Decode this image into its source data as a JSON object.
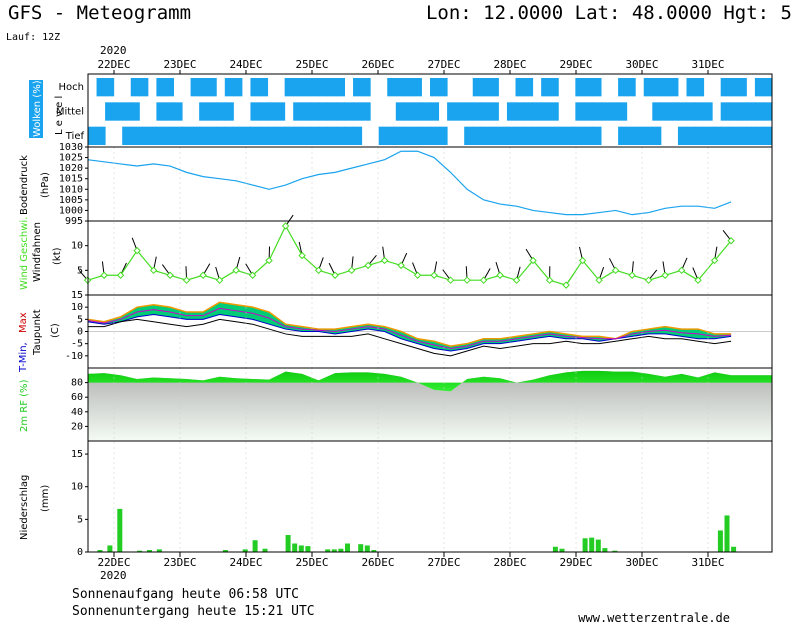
{
  "header": {
    "title": "GFS - Meteogramm",
    "coords": "Lon: 12.0000 Lat: 48.0000 Hgt: 5",
    "run": "Lauf: 12Z",
    "year": "2020"
  },
  "footer": {
    "sunrise": "Sonnenaufgang heute 06:58 UTC",
    "sunset": "Sonnenuntergang heute 15:21 UTC",
    "website": "www.wetterzentrale.de"
  },
  "colors": {
    "cloud": "#1aa3ee",
    "pressure": "#1aa3ee",
    "wind": "#44dd22",
    "barb": "#000000",
    "tmin": "#0000cc",
    "tmax": "#cc0000",
    "dew": "#000000",
    "rh": "#22cc22",
    "precip": "#22cc22"
  },
  "chart_data": [
    {
      "type": "heatmap",
      "name": "Wolken (%)",
      "panel_label": "Wolken (%)",
      "level_label": "L e v e l",
      "levels": [
        "Hoch",
        "Mittel",
        "Tief"
      ],
      "x": [
        "22DEC",
        "23DEC",
        "24DEC",
        "25DEC",
        "26DEC",
        "27DEC",
        "28DEC",
        "29DEC",
        "30DEC",
        "31DEC"
      ],
      "rows": {
        "Hoch": [
          0,
          1,
          1,
          0,
          0,
          1,
          1,
          0,
          1,
          1,
          0,
          0,
          1,
          1,
          1,
          0,
          1,
          1,
          0,
          1,
          1,
          0,
          0,
          1,
          1,
          1,
          1,
          1,
          1,
          1,
          0,
          1,
          1,
          0,
          0,
          1,
          1,
          1,
          1,
          0,
          1,
          1,
          0,
          0,
          0,
          1,
          1,
          1,
          0,
          0,
          1,
          1,
          0,
          1,
          1,
          0,
          0,
          1,
          1,
          1,
          0,
          0,
          1,
          1,
          0,
          1,
          1,
          1,
          1,
          0,
          1,
          1,
          0,
          0,
          1,
          1,
          1,
          0,
          1,
          1
        ],
        "Mittel": [
          0,
          0,
          1,
          1,
          1,
          1,
          0,
          0,
          1,
          1,
          1,
          0,
          0,
          1,
          1,
          1,
          1,
          0,
          0,
          1,
          1,
          1,
          1,
          0,
          1,
          1,
          1,
          1,
          1,
          1,
          1,
          1,
          1,
          0,
          0,
          0,
          1,
          1,
          1,
          1,
          1,
          0,
          1,
          1,
          1,
          1,
          1,
          1,
          0,
          1,
          1,
          1,
          1,
          1,
          1,
          0,
          0,
          1,
          1,
          1,
          1,
          1,
          1,
          0,
          0,
          0,
          1,
          1,
          1,
          1,
          1,
          1,
          1,
          0,
          1,
          1,
          1,
          1,
          1,
          1
        ],
        "Tief": [
          1,
          1,
          0,
          0,
          1,
          1,
          1,
          1,
          1,
          1,
          1,
          1,
          1,
          1,
          1,
          1,
          1,
          1,
          1,
          1,
          1,
          1,
          1,
          1,
          1,
          1,
          1,
          1,
          1,
          1,
          1,
          1,
          0,
          0,
          1,
          1,
          1,
          1,
          1,
          1,
          1,
          1,
          0,
          0,
          1,
          1,
          1,
          1,
          1,
          1,
          1,
          1,
          1,
          1,
          1,
          1,
          1,
          1,
          1,
          1,
          0,
          0,
          1,
          1,
          1,
          1,
          1,
          0,
          0,
          1,
          1,
          1,
          1,
          1,
          1,
          1,
          1,
          1,
          1,
          1
        ]
      }
    },
    {
      "type": "line",
      "name": "Bodendruck",
      "ylabel": "Bodendruck (hPa)",
      "ylim": [
        995,
        1030
      ],
      "yticks": [
        995,
        1000,
        1005,
        1010,
        1015,
        1020,
        1025,
        1030
      ],
      "x": [
        0,
        0.25,
        0.5,
        0.75,
        1,
        1.25,
        1.5,
        1.75,
        2,
        2.25,
        2.5,
        2.75,
        3,
        3.25,
        3.5,
        3.75,
        4,
        4.25,
        4.5,
        4.75,
        5,
        5.25,
        5.5,
        5.75,
        6,
        6.25,
        6.5,
        6.75,
        7,
        7.25,
        7.5,
        7.75,
        8,
        8.25,
        8.5,
        8.75,
        9,
        9.25,
        9.5,
        9.75
      ],
      "values": [
        1024,
        1023,
        1022,
        1021,
        1022,
        1021,
        1018,
        1016,
        1015,
        1014,
        1012,
        1010,
        1012,
        1015,
        1017,
        1018,
        1020,
        1022,
        1024,
        1028,
        1028,
        1025,
        1018,
        1010,
        1005,
        1003,
        1002,
        1000,
        999,
        998,
        998,
        999,
        1000,
        998,
        999,
        1001,
        1002,
        1002,
        1001,
        1004
      ]
    },
    {
      "type": "line",
      "name": "Wind Geschwi.",
      "ylabel": "Wind Geschwi. Windfahnen (kt)",
      "ylim": [
        0,
        15
      ],
      "yticks": [
        5,
        10
      ],
      "x": [
        0,
        0.25,
        0.5,
        0.75,
        1,
        1.25,
        1.5,
        1.75,
        2,
        2.25,
        2.5,
        2.75,
        3,
        3.25,
        3.5,
        3.75,
        4,
        4.25,
        4.5,
        4.75,
        5,
        5.25,
        5.5,
        5.75,
        6,
        6.25,
        6.5,
        6.75,
        7,
        7.25,
        7.5,
        7.75,
        8,
        8.25,
        8.5,
        8.75,
        9,
        9.25,
        9.5,
        9.75
      ],
      "values": [
        3,
        4,
        4,
        9,
        5,
        4,
        3,
        4,
        3,
        5,
        4,
        7,
        14,
        8,
        5,
        4,
        5,
        6,
        7,
        6,
        4,
        4,
        3,
        3,
        3,
        4,
        3,
        7,
        3,
        2,
        7,
        3,
        5,
        4,
        3,
        4,
        5,
        3,
        7,
        11
      ]
    },
    {
      "type": "area",
      "name": "Temperatur",
      "ylabel": "T-Min, Max Taupunkt (C)",
      "ylim": [
        -15,
        15
      ],
      "yticks": [
        -10,
        -5,
        0,
        5,
        10,
        15
      ],
      "x": [
        0,
        0.25,
        0.5,
        0.75,
        1,
        1.25,
        1.5,
        1.75,
        2,
        2.25,
        2.5,
        2.75,
        3,
        3.25,
        3.5,
        3.75,
        4,
        4.25,
        4.5,
        4.75,
        5,
        5.25,
        5.5,
        5.75,
        6,
        6.25,
        6.5,
        6.75,
        7,
        7.25,
        7.5,
        7.75,
        8,
        8.25,
        8.5,
        8.75,
        9,
        9.25,
        9.5,
        9.75
      ],
      "series": [
        {
          "name": "T-Max",
          "values": [
            5,
            4,
            6,
            10,
            11,
            10,
            8,
            8,
            12,
            11,
            10,
            8,
            3,
            2,
            1,
            1,
            2,
            3,
            2,
            0,
            -3,
            -4,
            -6,
            -5,
            -3,
            -3,
            -2,
            -1,
            0,
            -1,
            -2,
            -2,
            -3,
            0,
            1,
            2,
            1,
            1,
            -1,
            -1
          ]
        },
        {
          "name": "T-Min",
          "values": [
            4,
            3,
            4,
            6,
            7,
            6,
            5,
            5,
            7,
            6,
            5,
            3,
            1,
            0,
            0,
            -1,
            0,
            1,
            0,
            -3,
            -5,
            -7,
            -8,
            -7,
            -5,
            -5,
            -4,
            -3,
            -2,
            -3,
            -3,
            -4,
            -3,
            -2,
            -1,
            -1,
            -2,
            -3,
            -3,
            -2
          ]
        },
        {
          "name": "Taupunkt",
          "values": [
            2,
            2,
            4,
            5,
            4,
            3,
            2,
            3,
            5,
            4,
            3,
            1,
            -1,
            -2,
            -2,
            -2,
            -2,
            -1,
            -3,
            -5,
            -7,
            -9,
            -10,
            -8,
            -6,
            -7,
            -6,
            -5,
            -5,
            -4,
            -5,
            -5,
            -4,
            -3,
            -2,
            -3,
            -3,
            -4,
            -5,
            -4
          ]
        }
      ]
    },
    {
      "type": "area",
      "name": "2m RF",
      "ylabel": "2m RF (%)",
      "ylim": [
        0,
        100
      ],
      "yticks": [
        20,
        40,
        60,
        80
      ],
      "x": [
        0,
        0.25,
        0.5,
        0.75,
        1,
        1.25,
        1.5,
        1.75,
        2,
        2.25,
        2.5,
        2.75,
        3,
        3.25,
        3.5,
        3.75,
        4,
        4.25,
        4.5,
        4.75,
        5,
        5.25,
        5.5,
        5.75,
        6,
        6.25,
        6.5,
        6.75,
        7,
        7.25,
        7.5,
        7.75,
        8,
        8.25,
        8.5,
        8.75,
        9,
        9.25,
        9.5,
        9.75
      ],
      "values": [
        92,
        93,
        90,
        85,
        87,
        86,
        85,
        83,
        88,
        86,
        85,
        84,
        95,
        92,
        83,
        93,
        94,
        94,
        92,
        88,
        80,
        70,
        68,
        85,
        88,
        86,
        80,
        84,
        90,
        94,
        96,
        96,
        95,
        95,
        92,
        88,
        92,
        87,
        94,
        90
      ]
    },
    {
      "type": "bar",
      "name": "Niederschlag",
      "ylabel": "Niederschlag (mm)",
      "ylim": [
        0,
        17
      ],
      "yticks": [
        0,
        5,
        10,
        15
      ],
      "x": [
        0.15,
        0.3,
        0.45,
        0.75,
        0.9,
        1.05,
        2.05,
        2.35,
        2.5,
        2.65,
        3.0,
        3.1,
        3.2,
        3.3,
        3.6,
        3.7,
        3.8,
        3.9,
        4.1,
        4.2,
        4.3,
        7.05,
        7.15,
        7.5,
        7.6,
        7.7,
        7.8,
        7.95,
        9.55,
        9.65,
        9.75
      ],
      "values": [
        0.3,
        1.0,
        6.6,
        0.2,
        0.3,
        0.4,
        0.3,
        0.4,
        1.8,
        0.5,
        2.6,
        1.3,
        1.0,
        0.9,
        0.4,
        0.4,
        0.5,
        1.3,
        1.2,
        1.0,
        0.3,
        0.8,
        0.5,
        2.1,
        2.2,
        1.9,
        0.6,
        0.2,
        3.3,
        5.6,
        0.8
      ]
    }
  ],
  "xaxis": {
    "labels": [
      "22DEC",
      "23DEC",
      "24DEC",
      "25DEC",
      "26DEC",
      "27DEC",
      "28DEC",
      "29DEC",
      "30DEC",
      "31DEC"
    ]
  }
}
